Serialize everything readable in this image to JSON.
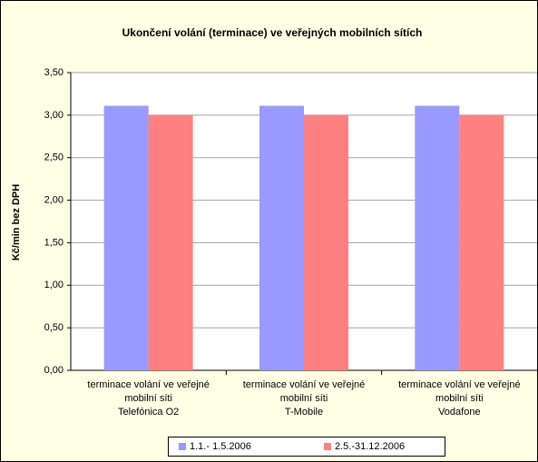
{
  "chart_data": {
    "type": "bar",
    "title": "Ukončení volání (terminace) ve veřejných mobilních sítích",
    "y_label": "Kč/min bez DPH",
    "categories": [
      "terminace volání ve veřejné\nmobilní síti\nTelefónica O2",
      "terminace volání ve veřejné\nmobilní síti\nT-Mobile",
      "terminace volání ve veřejné\nmobilní síti\nVodafone"
    ],
    "series": [
      {
        "name": "1.1.- 1.5.2006",
        "color": "#9999ff",
        "values": [
          3.11,
          3.11,
          3.11
        ]
      },
      {
        "name": "2.5.-31.12.2006",
        "color": "#ff8080",
        "values": [
          3.0,
          3.0,
          3.0
        ]
      }
    ],
    "ylim": [
      0,
      3.5
    ],
    "yticks": [
      {
        "value": 0,
        "label": "0,00"
      },
      {
        "value": 0.5,
        "label": "0,50"
      },
      {
        "value": 1,
        "label": "1,00"
      },
      {
        "value": 1.5,
        "label": "1,50"
      },
      {
        "value": 2,
        "label": "2,00"
      },
      {
        "value": 2.5,
        "label": "2,50"
      },
      {
        "value": 3,
        "label": "3,00"
      },
      {
        "value": 3.5,
        "label": "3,50"
      }
    ],
    "grid": true,
    "legend": "bottom"
  }
}
